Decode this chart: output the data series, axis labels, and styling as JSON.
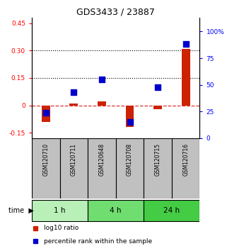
{
  "title": "GDS3433 / 23887",
  "samples": [
    "GSM120710",
    "GSM120711",
    "GSM120648",
    "GSM120708",
    "GSM120715",
    "GSM120716"
  ],
  "log10_ratio": [
    -0.09,
    0.01,
    0.02,
    -0.12,
    -0.02,
    0.31
  ],
  "percentile_rank": [
    24,
    43,
    55,
    15,
    48,
    88
  ],
  "ylim_left": [
    -0.18,
    0.48
  ],
  "ylim_right": [
    0,
    113
  ],
  "yticks_left": [
    -0.15,
    0,
    0.15,
    0.3,
    0.45
  ],
  "ytick_labels_left": [
    "-0.15",
    "0",
    "0.15",
    "0.30",
    "0.45"
  ],
  "yticks_right": [
    0,
    25,
    50,
    75,
    100
  ],
  "ytick_labels_right": [
    "0",
    "25",
    "50",
    "75",
    "100%"
  ],
  "hlines": [
    0.15,
    0.3
  ],
  "time_groups": [
    {
      "label": "1 h",
      "start": 0,
      "end": 2,
      "color": "#b8f0b8"
    },
    {
      "label": "4 h",
      "start": 2,
      "end": 4,
      "color": "#70dd70"
    },
    {
      "label": "24 h",
      "start": 4,
      "end": 6,
      "color": "#44cc44"
    }
  ],
  "bar_color": "#cc2200",
  "scatter_color": "#0000cc",
  "bar_width": 0.3,
  "scatter_size": 40,
  "legend_items": [
    "log10 ratio",
    "percentile rank within the sample"
  ],
  "legend_colors": [
    "#cc2200",
    "#0000cc"
  ],
  "bg_color": "#ffffff",
  "sample_box_color": "#c0c0c0",
  "dashed_zero_color": "#dd3333"
}
